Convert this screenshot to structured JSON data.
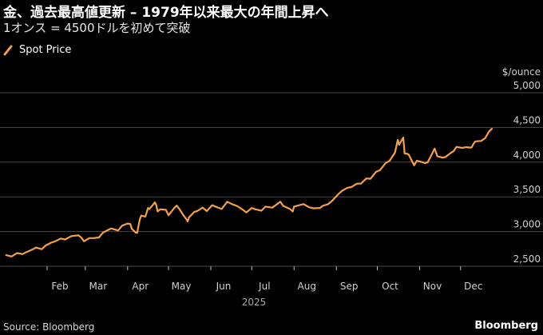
{
  "header": {
    "title": "金、過去最高値更新 – 1979年以来最大の年間上昇へ",
    "subtitle": "1オンス = 4500ドルを初めて突破"
  },
  "footer": {
    "source": "Source: Bloomberg",
    "brand": "Bloomberg"
  },
  "colors": {
    "background": "#000000",
    "line": "#f5a04a",
    "grid": "#4a4a4a",
    "text": "#ffffff",
    "axis_text": "#d0d0d0"
  },
  "chart_data": {
    "type": "line",
    "title": "金、過去最高値更新 – 1979年以来最大の年間上昇へ",
    "subtitle": "1オンス = 4500ドルを初めて突破",
    "xlabel": "2025",
    "ylabel": "$/ounce",
    "ylim": [
      2500,
      5000
    ],
    "yticks": [
      2500,
      3000,
      3500,
      4000,
      4500,
      5000
    ],
    "ytick_labels": [
      "2,500",
      "3,000",
      "3,500",
      "4,000",
      "4,500",
      "5,000"
    ],
    "xticks": [
      "2025-02-01",
      "2025-03-01",
      "2025-04-01",
      "2025-05-01",
      "2025-06-01",
      "2025-07-01",
      "2025-08-01",
      "2025-09-01",
      "2025-10-01",
      "2025-11-01",
      "2025-12-01"
    ],
    "xtick_labels": [
      "Feb",
      "Mar",
      "Apr",
      "May",
      "Jun",
      "Jul",
      "Aug",
      "Sep",
      "Oct",
      "Nov",
      "Dec"
    ],
    "xlim": [
      "2025-01-01",
      "2025-12-31"
    ],
    "grid": true,
    "legend": "top-left",
    "series": [
      {
        "name": "Spot Price",
        "color": "#f5a04a",
        "points": [
          [
            "2025-01-02",
            2660
          ],
          [
            "2025-01-06",
            2640
          ],
          [
            "2025-01-10",
            2690
          ],
          [
            "2025-01-14",
            2675
          ],
          [
            "2025-01-17",
            2705
          ],
          [
            "2025-01-21",
            2740
          ],
          [
            "2025-01-24",
            2770
          ],
          [
            "2025-01-28",
            2745
          ],
          [
            "2025-01-31",
            2800
          ],
          [
            "2025-02-04",
            2840
          ],
          [
            "2025-02-07",
            2860
          ],
          [
            "2025-02-11",
            2900
          ],
          [
            "2025-02-14",
            2885
          ],
          [
            "2025-02-19",
            2935
          ],
          [
            "2025-02-24",
            2945
          ],
          [
            "2025-02-26",
            2915
          ],
          [
            "2025-02-28",
            2860
          ],
          [
            "2025-03-04",
            2905
          ],
          [
            "2025-03-07",
            2905
          ],
          [
            "2025-03-11",
            2915
          ],
          [
            "2025-03-14",
            2985
          ],
          [
            "2025-03-18",
            3025
          ],
          [
            "2025-03-20",
            3045
          ],
          [
            "2025-03-25",
            3015
          ],
          [
            "2025-03-28",
            3085
          ],
          [
            "2025-04-01",
            3115
          ],
          [
            "2025-04-03",
            3110
          ],
          [
            "2025-04-04",
            3040
          ],
          [
            "2025-04-07",
            2985
          ],
          [
            "2025-04-08",
            2980
          ],
          [
            "2025-04-09",
            3085
          ],
          [
            "2025-04-10",
            3180
          ],
          [
            "2025-04-11",
            3230
          ],
          [
            "2025-04-14",
            3215
          ],
          [
            "2025-04-16",
            3340
          ],
          [
            "2025-04-17",
            3325
          ],
          [
            "2025-04-21",
            3420
          ],
          [
            "2025-04-22",
            3380
          ],
          [
            "2025-04-23",
            3290
          ],
          [
            "2025-04-25",
            3320
          ],
          [
            "2025-04-29",
            3315
          ],
          [
            "2025-05-01",
            3235
          ],
          [
            "2025-05-05",
            3335
          ],
          [
            "2025-05-07",
            3375
          ],
          [
            "2025-05-09",
            3325
          ],
          [
            "2025-05-12",
            3230
          ],
          [
            "2025-05-14",
            3180
          ],
          [
            "2025-05-15",
            3145
          ],
          [
            "2025-05-16",
            3205
          ],
          [
            "2025-05-20",
            3285
          ],
          [
            "2025-05-22",
            3295
          ],
          [
            "2025-05-26",
            3345
          ],
          [
            "2025-05-29",
            3295
          ],
          [
            "2025-06-02",
            3380
          ],
          [
            "2025-06-05",
            3355
          ],
          [
            "2025-06-09",
            3325
          ],
          [
            "2025-06-13",
            3430
          ],
          [
            "2025-06-17",
            3390
          ],
          [
            "2025-06-20",
            3370
          ],
          [
            "2025-06-24",
            3320
          ],
          [
            "2025-06-27",
            3275
          ],
          [
            "2025-07-01",
            3340
          ],
          [
            "2025-07-03",
            3325
          ],
          [
            "2025-07-08",
            3300
          ],
          [
            "2025-07-11",
            3360
          ],
          [
            "2025-07-16",
            3345
          ],
          [
            "2025-07-22",
            3430
          ],
          [
            "2025-07-24",
            3370
          ],
          [
            "2025-07-29",
            3325
          ],
          [
            "2025-07-31",
            3290
          ],
          [
            "2025-08-01",
            3360
          ],
          [
            "2025-08-05",
            3380
          ],
          [
            "2025-08-08",
            3395
          ],
          [
            "2025-08-12",
            3350
          ],
          [
            "2025-08-15",
            3335
          ],
          [
            "2025-08-20",
            3340
          ],
          [
            "2025-08-22",
            3370
          ],
          [
            "2025-08-26",
            3395
          ],
          [
            "2025-08-29",
            3445
          ],
          [
            "2025-09-02",
            3530
          ],
          [
            "2025-09-05",
            3585
          ],
          [
            "2025-09-09",
            3630
          ],
          [
            "2025-09-12",
            3640
          ],
          [
            "2025-09-16",
            3690
          ],
          [
            "2025-09-19",
            3690
          ],
          [
            "2025-09-23",
            3765
          ],
          [
            "2025-09-26",
            3760
          ],
          [
            "2025-09-30",
            3860
          ],
          [
            "2025-10-03",
            3885
          ],
          [
            "2025-10-07",
            3985
          ],
          [
            "2025-10-10",
            4020
          ],
          [
            "2025-10-14",
            4140
          ],
          [
            "2025-10-16",
            4320
          ],
          [
            "2025-10-17",
            4250
          ],
          [
            "2025-10-20",
            4355
          ],
          [
            "2025-10-21",
            4125
          ],
          [
            "2025-10-23",
            4120
          ],
          [
            "2025-10-24",
            4110
          ],
          [
            "2025-10-28",
            3955
          ],
          [
            "2025-10-30",
            4020
          ],
          [
            "2025-11-03",
            4000
          ],
          [
            "2025-11-05",
            3985
          ],
          [
            "2025-11-07",
            4000
          ],
          [
            "2025-11-10",
            4115
          ],
          [
            "2025-11-12",
            4195
          ],
          [
            "2025-11-14",
            4085
          ],
          [
            "2025-11-18",
            4065
          ],
          [
            "2025-11-20",
            4075
          ],
          [
            "2025-11-24",
            4135
          ],
          [
            "2025-11-26",
            4160
          ],
          [
            "2025-11-28",
            4220
          ],
          [
            "2025-12-02",
            4205
          ],
          [
            "2025-12-05",
            4215
          ],
          [
            "2025-12-09",
            4210
          ],
          [
            "2025-12-11",
            4280
          ],
          [
            "2025-12-12",
            4300
          ],
          [
            "2025-12-16",
            4305
          ],
          [
            "2025-12-19",
            4345
          ],
          [
            "2025-12-22",
            4445
          ],
          [
            "2025-12-24",
            4480
          ]
        ]
      }
    ]
  }
}
